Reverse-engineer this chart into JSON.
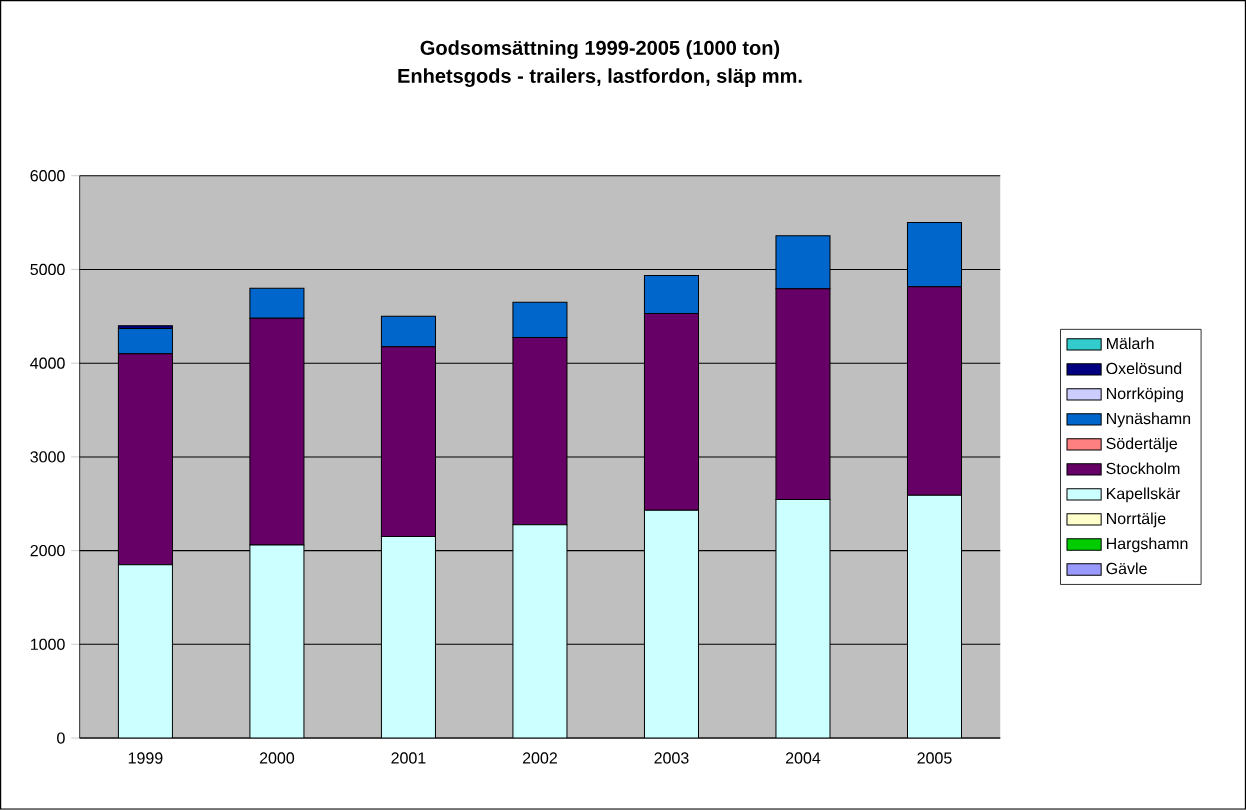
{
  "chart_data": {
    "type": "bar",
    "stacked": true,
    "title": "Godsomsättning 1999-2005 (1000 ton)",
    "subtitle": "Enhetsgods - trailers, lastfordon, släp mm.",
    "categories": [
      "1999",
      "2000",
      "2001",
      "2002",
      "2003",
      "2004",
      "2005"
    ],
    "ylim": [
      0,
      6000
    ],
    "yticks": [
      0,
      1000,
      2000,
      3000,
      4000,
      5000,
      6000
    ],
    "grid": "y",
    "legend": "right",
    "series": [
      {
        "name": "Gävle",
        "color": "#9999ff",
        "values": [
          0,
          0,
          0,
          0,
          0,
          0,
          0
        ]
      },
      {
        "name": "Hargshamn",
        "color": "#00cc00",
        "values": [
          0,
          0,
          0,
          0,
          0,
          0,
          0
        ]
      },
      {
        "name": "Norrtälje",
        "color": "#ffffcc",
        "values": [
          0,
          0,
          0,
          0,
          0,
          0,
          0
        ]
      },
      {
        "name": "Kapellskär",
        "color": "#ccffff",
        "values": [
          1850,
          2060,
          2150,
          2275,
          2430,
          2545,
          2590
        ]
      },
      {
        "name": "Stockholm",
        "color": "#660066",
        "values": [
          2250,
          2420,
          2025,
          2000,
          2100,
          2250,
          2225
        ]
      },
      {
        "name": "Södertälje",
        "color": "#ff8080",
        "values": [
          0,
          0,
          0,
          0,
          0,
          0,
          0
        ]
      },
      {
        "name": "Nynäshamn",
        "color": "#0066cc",
        "values": [
          270,
          320,
          325,
          375,
          405,
          565,
          685
        ]
      },
      {
        "name": "Norrköping",
        "color": "#ccccff",
        "values": [
          0,
          0,
          0,
          0,
          0,
          0,
          0
        ]
      },
      {
        "name": "Oxelösund",
        "color": "#000080",
        "values": [
          30,
          0,
          0,
          0,
          0,
          0,
          0
        ]
      },
      {
        "name": "Mälarh",
        "color": "#33cccc",
        "values": [
          0,
          0,
          0,
          0,
          0,
          0,
          0
        ]
      }
    ]
  }
}
